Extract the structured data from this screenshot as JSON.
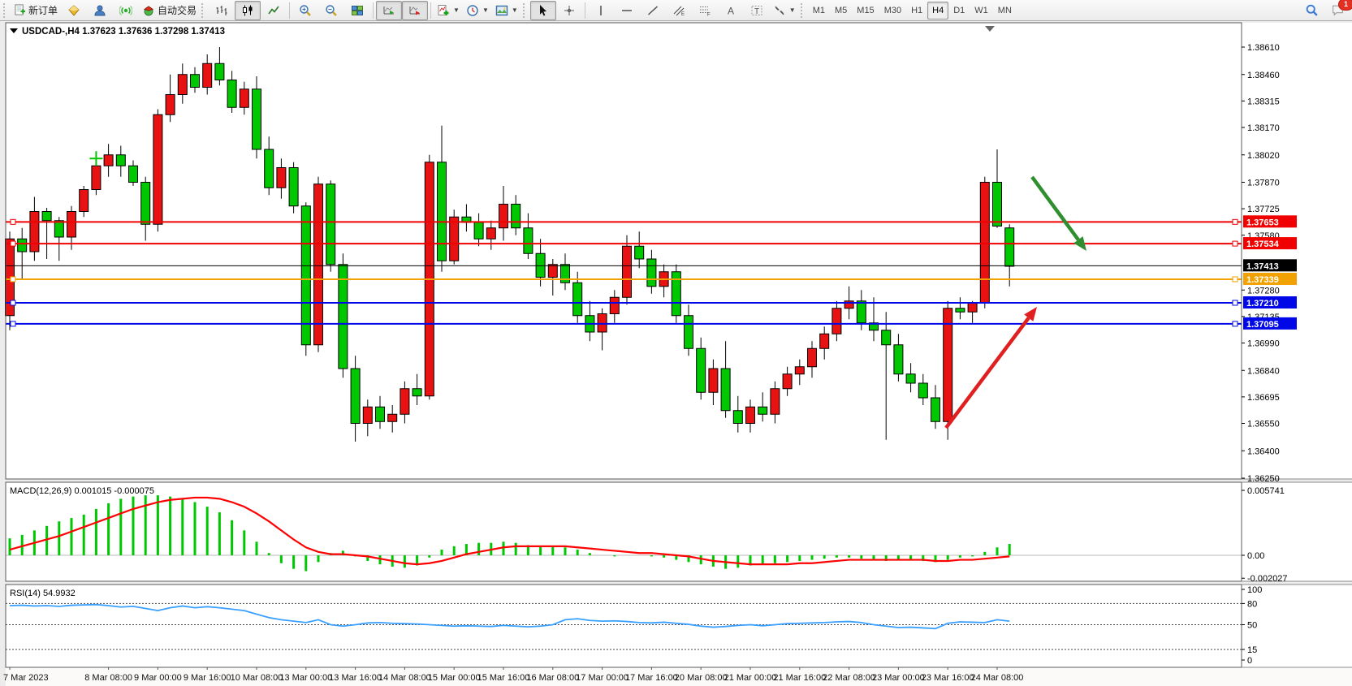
{
  "toolbar": {
    "new_order_label": "新订单",
    "auto_trading_label": "自动交易",
    "timeframes": [
      "M1",
      "M5",
      "M15",
      "M30",
      "H1",
      "H4",
      "D1",
      "W1",
      "MN"
    ],
    "active_timeframe": "H4",
    "notification_count": "1",
    "icons": [
      "new-order-icon",
      "quotes-gold-icon",
      "profile-icon",
      "broadcast-icon",
      "auto-trading-icon",
      "bar-chart-icon",
      "candlestick-chart-icon",
      "line-chart-icon",
      "zoom-in-icon",
      "zoom-out-icon",
      "tile-windows-icon",
      "auto-scroll-icon",
      "chart-shift-icon",
      "indicators-icon",
      "periods-clock-icon",
      "template-icon",
      "cursor-icon",
      "crosshair-icon",
      "vertical-line-icon",
      "horizontal-line-icon",
      "trendline-icon",
      "channel-icon",
      "fibonacci-icon",
      "text-icon",
      "label-icon",
      "arrows-icon",
      "search-icon",
      "chat-icon"
    ]
  },
  "chart": {
    "title": "USDCAD-,H4",
    "ohlc": "1.37623 1.37636 1.37298 1.37413",
    "price_axis": {
      "ticks": [
        "1.38610",
        "1.38460",
        "1.38315",
        "1.38170",
        "1.38020",
        "1.37870",
        "1.37725",
        "1.37580",
        "1.37280",
        "1.37135",
        "1.36990",
        "1.36840",
        "1.36695",
        "1.36550",
        "1.36400",
        "1.36250"
      ],
      "max": 1.3861,
      "min": 1.3625
    },
    "price_lines": [
      {
        "value": 1.37653,
        "label": "1.37653",
        "color": "#f00000",
        "width": 2
      },
      {
        "value": 1.37534,
        "label": "1.37534",
        "color": "#f00000",
        "width": 2
      },
      {
        "value": 1.37339,
        "label": "1.37339",
        "color": "#f2a200",
        "width": 2
      },
      {
        "value": 1.3721,
        "label": "1.37210",
        "color": "#0008e8",
        "width": 2
      },
      {
        "value": 1.37095,
        "label": "1.37095",
        "color": "#0008e8",
        "width": 2
      }
    ],
    "current_price": {
      "value": 1.37413,
      "label": "1.37413",
      "color": "#000000"
    },
    "time_axis": {
      "labels": [
        "7 Mar 2023",
        "8 Mar 08:00",
        "9 Mar 00:00",
        "9 Mar 16:00",
        "10 Mar 08:00",
        "13 Mar 00:00",
        "13 Mar 16:00",
        "14 Mar 08:00",
        "15 Mar 00:00",
        "15 Mar 16:00",
        "16 Mar 08:00",
        "17 Mar 00:00",
        "17 Mar 16:00",
        "20 Mar 08:00",
        "21 Mar 00:00",
        "21 Mar 16:00",
        "22 Mar 08:00",
        "23 Mar 00:00",
        "23 Mar 16:00",
        "24 Mar 08:00"
      ],
      "indices": [
        0,
        8,
        12,
        16,
        20,
        24,
        28,
        32,
        36,
        40,
        44,
        48,
        52,
        56,
        60,
        64,
        68,
        72,
        76,
        80
      ]
    },
    "annotations": {
      "green_arrow": {
        "from": [
          1271,
          192
        ],
        "to": [
          1338,
          283
        ],
        "color": "#2f8f2f"
      },
      "red_arrow": {
        "from": [
          1165,
          501
        ],
        "to": [
          1277,
          352
        ],
        "color": "#e02020"
      },
      "cross_marker": {
        "x_index": 7,
        "price": 1.38,
        "color": "#00c800"
      }
    }
  },
  "chart_data": [
    {
      "type": "candlestick",
      "title": "USDCAD-,H4",
      "current_bar": {
        "open": 1.37623,
        "high": 1.37636,
        "low": 1.37298,
        "close": 1.37413
      },
      "ylim": [
        1.3625,
        1.3861
      ],
      "up_color": "#e81212",
      "down_color": "#00c800",
      "candles": [
        [
          1.3714,
          1.376,
          1.3706,
          1.3756
        ],
        [
          1.3756,
          1.3762,
          1.3734,
          1.3749
        ],
        [
          1.3749,
          1.3779,
          1.3744,
          1.3771
        ],
        [
          1.3771,
          1.3773,
          1.3745,
          1.3766
        ],
        [
          1.3766,
          1.3768,
          1.3744,
          1.3757
        ],
        [
          1.3757,
          1.3774,
          1.375,
          1.3771
        ],
        [
          1.3771,
          1.3785,
          1.3768,
          1.3783
        ],
        [
          1.3783,
          1.38,
          1.378,
          1.3796
        ],
        [
          1.3796,
          1.3808,
          1.379,
          1.3802
        ],
        [
          1.3802,
          1.3807,
          1.379,
          1.3796
        ],
        [
          1.3796,
          1.3799,
          1.3785,
          1.3787
        ],
        [
          1.3787,
          1.379,
          1.3755,
          1.3764
        ],
        [
          1.3764,
          1.3827,
          1.376,
          1.3824
        ],
        [
          1.3824,
          1.3846,
          1.382,
          1.3835
        ],
        [
          1.3835,
          1.3852,
          1.383,
          1.3846
        ],
        [
          1.3846,
          1.385,
          1.3836,
          1.3839
        ],
        [
          1.3839,
          1.3857,
          1.3835,
          1.3852
        ],
        [
          1.3852,
          1.3861,
          1.384,
          1.3843
        ],
        [
          1.3843,
          1.3848,
          1.3825,
          1.3828
        ],
        [
          1.3828,
          1.3842,
          1.3824,
          1.3838
        ],
        [
          1.3838,
          1.3845,
          1.38,
          1.3805
        ],
        [
          1.3805,
          1.3812,
          1.378,
          1.3784
        ],
        [
          1.3784,
          1.38,
          1.3778,
          1.3795
        ],
        [
          1.3795,
          1.3798,
          1.377,
          1.3774
        ],
        [
          1.3774,
          1.3776,
          1.3692,
          1.3698
        ],
        [
          1.3698,
          1.379,
          1.3694,
          1.3786
        ],
        [
          1.3786,
          1.3788,
          1.3738,
          1.3742
        ],
        [
          1.3742,
          1.3748,
          1.368,
          1.3685
        ],
        [
          1.3685,
          1.3692,
          1.3645,
          1.3655
        ],
        [
          1.3655,
          1.3668,
          1.3648,
          1.3664
        ],
        [
          1.3664,
          1.367,
          1.3652,
          1.3656
        ],
        [
          1.3656,
          1.3665,
          1.365,
          1.366
        ],
        [
          1.366,
          1.3678,
          1.3655,
          1.3674
        ],
        [
          1.3674,
          1.3682,
          1.3665,
          1.367
        ],
        [
          1.367,
          1.3802,
          1.3668,
          1.3798
        ],
        [
          1.3798,
          1.3818,
          1.3738,
          1.3744
        ],
        [
          1.3744,
          1.3772,
          1.3742,
          1.3768
        ],
        [
          1.3768,
          1.3775,
          1.376,
          1.3765
        ],
        [
          1.3765,
          1.377,
          1.3752,
          1.3756
        ],
        [
          1.3756,
          1.3766,
          1.375,
          1.3762
        ],
        [
          1.3762,
          1.3785,
          1.3755,
          1.3775
        ],
        [
          1.3775,
          1.378,
          1.3758,
          1.3762
        ],
        [
          1.3762,
          1.377,
          1.3745,
          1.3748
        ],
        [
          1.3748,
          1.3756,
          1.373,
          1.3735
        ],
        [
          1.3735,
          1.3745,
          1.3725,
          1.3742
        ],
        [
          1.3742,
          1.3748,
          1.3728,
          1.3732
        ],
        [
          1.3732,
          1.3738,
          1.371,
          1.3714
        ],
        [
          1.3714,
          1.3722,
          1.37,
          1.3705
        ],
        [
          1.3705,
          1.3718,
          1.3695,
          1.3715
        ],
        [
          1.3715,
          1.3728,
          1.371,
          1.3724
        ],
        [
          1.3724,
          1.3758,
          1.372,
          1.3752
        ],
        [
          1.3752,
          1.376,
          1.374,
          1.3745
        ],
        [
          1.3745,
          1.375,
          1.3726,
          1.373
        ],
        [
          1.373,
          1.3742,
          1.3724,
          1.3738
        ],
        [
          1.3738,
          1.3742,
          1.371,
          1.3714
        ],
        [
          1.3714,
          1.372,
          1.3692,
          1.3696
        ],
        [
          1.3696,
          1.3702,
          1.3668,
          1.3672
        ],
        [
          1.3672,
          1.369,
          1.3665,
          1.3685
        ],
        [
          1.3685,
          1.37,
          1.3658,
          1.3662
        ],
        [
          1.3662,
          1.367,
          1.365,
          1.3655
        ],
        [
          1.3655,
          1.3668,
          1.365,
          1.3664
        ],
        [
          1.3664,
          1.3672,
          1.3656,
          1.366
        ],
        [
          1.366,
          1.3678,
          1.3655,
          1.3674
        ],
        [
          1.3674,
          1.3686,
          1.367,
          1.3682
        ],
        [
          1.3682,
          1.369,
          1.3676,
          1.3686
        ],
        [
          1.3686,
          1.37,
          1.368,
          1.3696
        ],
        [
          1.3696,
          1.3708,
          1.369,
          1.3704
        ],
        [
          1.3704,
          1.3722,
          1.37,
          1.3718
        ],
        [
          1.3718,
          1.373,
          1.3712,
          1.3722
        ],
        [
          1.3722,
          1.3728,
          1.3706,
          1.371
        ],
        [
          1.371,
          1.3724,
          1.37,
          1.3706
        ],
        [
          1.3706,
          1.3716,
          1.3646,
          1.3698
        ],
        [
          1.3698,
          1.3704,
          1.3678,
          1.3682
        ],
        [
          1.3682,
          1.3688,
          1.3672,
          1.3677
        ],
        [
          1.3677,
          1.3682,
          1.3665,
          1.3669
        ],
        [
          1.3669,
          1.3676,
          1.3652,
          1.3656
        ],
        [
          1.3656,
          1.3722,
          1.3646,
          1.3718
        ],
        [
          1.3718,
          1.3724,
          1.3712,
          1.3716
        ],
        [
          1.3716,
          1.3722,
          1.371,
          1.3721
        ],
        [
          1.3721,
          1.379,
          1.3718,
          1.3787
        ],
        [
          1.3787,
          1.3805,
          1.3762,
          1.3763
        ],
        [
          1.3762,
          1.3764,
          1.373,
          1.3741
        ]
      ]
    },
    {
      "type": "bar",
      "name": "MACD(12,26,9)",
      "label": "MACD(12,26,9) 0.001015 -0.000075",
      "axis_labels": [
        "0.005741",
        "0.00",
        "-0.002027"
      ],
      "ylim": [
        -0.002027,
        0.005741
      ],
      "histogram_color": "#00c800",
      "signal_color": "#ff0000",
      "values_e4": [
        15,
        18,
        22,
        26,
        30,
        33,
        36,
        41,
        46,
        50,
        52,
        53,
        53,
        52,
        50,
        47,
        43,
        38,
        31,
        22,
        12,
        2,
        -7,
        -12,
        -14,
        -6,
        2,
        4,
        -1,
        -5,
        -8,
        -10,
        -11,
        -9,
        -2,
        5,
        8,
        10,
        11,
        11,
        12,
        11,
        9,
        8,
        8,
        7,
        5,
        2,
        0,
        -1,
        0,
        0,
        -1,
        -2,
        -4,
        -6,
        -8,
        -10,
        -12,
        -11,
        -9,
        -8,
        -7,
        -6,
        -5,
        -4,
        -3,
        -2,
        -2,
        -3,
        -4,
        -5,
        -4,
        -4,
        -5,
        -6,
        -4,
        -2,
        -1,
        3,
        7,
        10
      ],
      "signal_e4": [
        5,
        8,
        11,
        14,
        17,
        21,
        25,
        29,
        33,
        37,
        41,
        44,
        47,
        49,
        50,
        51,
        51,
        50,
        47,
        43,
        37,
        30,
        22,
        14,
        7,
        3,
        1,
        1,
        0,
        -1,
        -3,
        -5,
        -7,
        -8,
        -7,
        -5,
        -2,
        1,
        3,
        5,
        7,
        8,
        8,
        8,
        8,
        8,
        7,
        6,
        5,
        4,
        3,
        2,
        2,
        1,
        0,
        -1,
        -3,
        -5,
        -6,
        -7,
        -8,
        -8,
        -8,
        -8,
        -7,
        -7,
        -6,
        -5,
        -4,
        -4,
        -4,
        -4,
        -4,
        -4,
        -4,
        -5,
        -5,
        -4,
        -4,
        -3,
        -2,
        -1
      ]
    },
    {
      "type": "line",
      "name": "RSI(14)",
      "label": "RSI(14) 54.9932",
      "axis_labels": [
        "100",
        "80",
        "50",
        "15",
        "0"
      ],
      "axis_values": [
        100,
        80,
        50,
        15,
        0
      ],
      "levels": [
        80,
        50,
        15
      ],
      "ylim": [
        0,
        100
      ],
      "line_color": "#3aa0ff",
      "values": [
        77,
        77.5,
        76.5,
        77,
        76,
        77.5,
        78,
        78.5,
        77,
        75,
        76,
        73,
        70,
        74,
        76.5,
        74,
        75.5,
        74,
        72,
        70,
        65,
        60,
        57,
        55,
        53,
        57,
        50,
        48,
        50,
        52.5,
        53,
        52,
        51.5,
        51,
        50,
        49,
        48,
        48.5,
        48,
        47.5,
        49,
        48,
        47,
        48,
        50,
        57,
        58.5,
        56,
        55,
        55.5,
        54.5,
        53,
        52.5,
        53.5,
        52,
        50.5,
        48,
        46.5,
        47.5,
        49,
        50,
        48.5,
        50,
        51.5,
        52,
        52.5,
        53,
        54,
        54.5,
        53,
        50,
        48,
        46,
        46.5,
        45.5,
        44.5,
        52,
        54,
        53.5,
        53,
        57,
        55
      ]
    }
  ]
}
